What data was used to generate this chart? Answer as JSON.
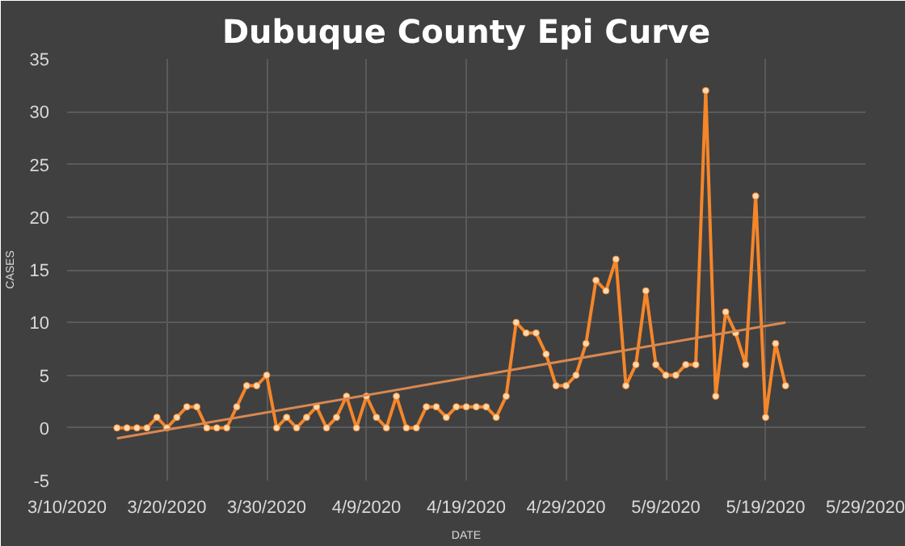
{
  "chart_data": {
    "type": "line",
    "title": "Dubuque County Epi Curve",
    "xlabel": "DATE",
    "ylabel": "CASES",
    "x": [
      "2020-03-15",
      "2020-03-16",
      "2020-03-17",
      "2020-03-18",
      "2020-03-19",
      "2020-03-20",
      "2020-03-21",
      "2020-03-22",
      "2020-03-23",
      "2020-03-24",
      "2020-03-25",
      "2020-03-26",
      "2020-03-27",
      "2020-03-28",
      "2020-03-29",
      "2020-03-30",
      "2020-03-31",
      "2020-04-01",
      "2020-04-02",
      "2020-04-03",
      "2020-04-04",
      "2020-04-05",
      "2020-04-06",
      "2020-04-07",
      "2020-04-08",
      "2020-04-09",
      "2020-04-10",
      "2020-04-11",
      "2020-04-12",
      "2020-04-13",
      "2020-04-14",
      "2020-04-15",
      "2020-04-16",
      "2020-04-17",
      "2020-04-18",
      "2020-04-19",
      "2020-04-20",
      "2020-04-21",
      "2020-04-22",
      "2020-04-23",
      "2020-04-24",
      "2020-04-25",
      "2020-04-26",
      "2020-04-27",
      "2020-04-28",
      "2020-04-29",
      "2020-04-30",
      "2020-05-01",
      "2020-05-02",
      "2020-05-03",
      "2020-05-04",
      "2020-05-05",
      "2020-05-06",
      "2020-05-07",
      "2020-05-08",
      "2020-05-09",
      "2020-05-10",
      "2020-05-11",
      "2020-05-12",
      "2020-05-13",
      "2020-05-14",
      "2020-05-15",
      "2020-05-16",
      "2020-05-17",
      "2020-05-18",
      "2020-05-19",
      "2020-05-20",
      "2020-05-21"
    ],
    "series": [
      {
        "color": "#f5862a",
        "marker": "circle",
        "values": [
          0,
          0,
          0,
          0,
          1,
          0,
          1,
          2,
          2,
          0,
          0,
          0,
          2,
          4,
          4,
          5,
          0,
          1,
          0,
          1,
          2,
          0,
          1,
          3,
          0,
          3,
          1,
          0,
          3,
          0,
          0,
          2,
          2,
          1,
          2,
          2,
          2,
          2,
          1,
          3,
          10,
          9,
          9,
          7,
          4,
          4,
          5,
          8,
          14,
          13,
          16,
          4,
          6,
          13,
          6,
          5,
          5,
          6,
          6,
          32,
          3,
          11,
          9,
          6,
          22,
          1,
          8,
          4
        ]
      },
      {
        "type": "line",
        "color": "#d98850",
        "marker": "none",
        "x": [
          "2020-03-15",
          "2020-05-21"
        ],
        "values": [
          -1,
          10
        ]
      }
    ],
    "xlim": [
      "2020-03-10",
      "2020-05-29"
    ],
    "xticks": [
      {
        "value": "2020-03-10",
        "label": "3/10/2020"
      },
      {
        "value": "2020-03-20",
        "label": "3/20/2020"
      },
      {
        "value": "2020-03-30",
        "label": "3/30/2020"
      },
      {
        "value": "2020-04-09",
        "label": "4/9/2020"
      },
      {
        "value": "2020-04-19",
        "label": "4/19/2020"
      },
      {
        "value": "2020-04-29",
        "label": "4/29/2020"
      },
      {
        "value": "2020-05-09",
        "label": "5/9/2020"
      },
      {
        "value": "2020-05-19",
        "label": "5/19/2020"
      },
      {
        "value": "2020-05-29",
        "label": "5/29/2020"
      }
    ],
    "ylim": [
      -5,
      35
    ],
    "yticks": [
      -5,
      0,
      5,
      10,
      15,
      20,
      25,
      30,
      35
    ],
    "grid": true
  }
}
